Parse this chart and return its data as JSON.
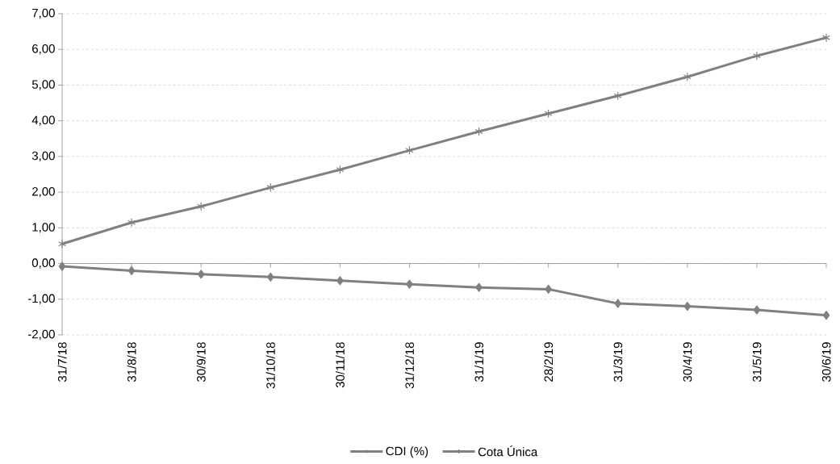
{
  "chart_data": {
    "type": "line",
    "categories": [
      "31/7/18",
      "31/8/18",
      "30/9/18",
      "31/10/18",
      "30/11/18",
      "31/12/18",
      "31/1/19",
      "28/2/19",
      "31/3/19",
      "30/4/19",
      "31/5/19",
      "30/6/19"
    ],
    "series": [
      {
        "name": "CDI (%)",
        "color": "#808080",
        "marker": "cross",
        "values": [
          0.55,
          1.15,
          1.6,
          2.13,
          2.63,
          3.17,
          3.7,
          4.2,
          4.7,
          5.23,
          5.82,
          6.33
        ]
      },
      {
        "name": "Cota Única",
        "color": "#808080",
        "marker": "diamond",
        "values": [
          -0.08,
          -0.2,
          -0.3,
          -0.38,
          -0.48,
          -0.58,
          -0.67,
          -0.72,
          -1.12,
          -1.2,
          -1.3,
          -1.45
        ]
      }
    ],
    "ylim": [
      -2,
      7
    ],
    "yticks": [
      {
        "value": -2,
        "label": "-2,00"
      },
      {
        "value": -1,
        "label": "-1,00"
      },
      {
        "value": 0,
        "label": "0,00"
      },
      {
        "value": 1,
        "label": "1,00"
      },
      {
        "value": 2,
        "label": "2,00"
      },
      {
        "value": 3,
        "label": "3,00"
      },
      {
        "value": 4,
        "label": "4,00"
      },
      {
        "value": 5,
        "label": "5,00"
      },
      {
        "value": 6,
        "label": "6,00"
      },
      {
        "value": 7,
        "label": "7,00"
      }
    ],
    "grid": "y",
    "legend": "bottom",
    "line_style": "solid"
  }
}
